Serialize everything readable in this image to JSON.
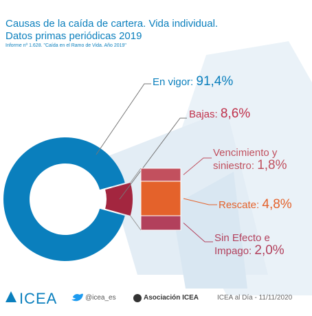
{
  "chart_data": {
    "type": "pie",
    "title": "Causas de la caída de cartera. Vida individual.",
    "subtitle": "Datos primas periódicas 2019",
    "note": "Informe nº 1.628. \"Caída en el Ramo de Vida. Año 2019\"",
    "categories": [
      "En vigor:",
      "Bajas:"
    ],
    "values": [
      91.4,
      8.6
    ],
    "value_labels": [
      "91,4%",
      "8,6%"
    ],
    "colors": [
      "#0a7fbd",
      "#a3263f"
    ],
    "breakdown": {
      "categories": [
        "Vencimiento y siniestro:",
        "Rescate:",
        "Sin Efecto e Impago:"
      ],
      "values": [
        1.8,
        4.8,
        2.0
      ],
      "value_labels": [
        "1,8%",
        "4,8%",
        "2,0%"
      ],
      "colors": [
        "#c2505e",
        "#e4622b",
        "#b2405c"
      ]
    }
  },
  "footer": {
    "logo": "ICEA",
    "twitter": "@icea_es",
    "linkedin": "Asociación ICEA",
    "date": "ICEA al Día - 11/11/2020"
  }
}
